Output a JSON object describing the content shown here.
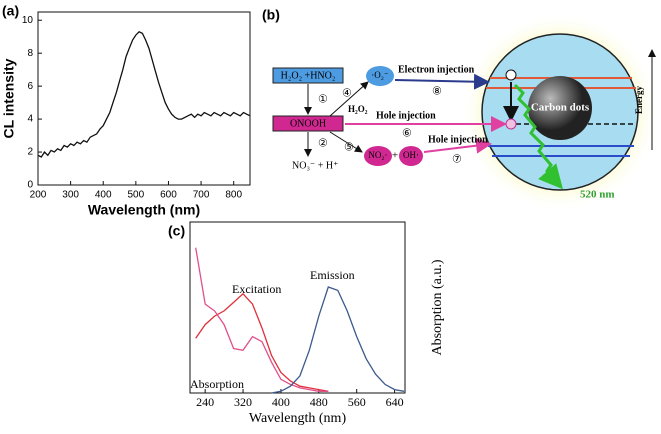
{
  "chart_data": [
    {
      "type": "line",
      "label": "(a)",
      "xlabel": "Wavelength (nm)",
      "ylabel": "CL intensity",
      "color": "#111111",
      "x": [
        200,
        210,
        220,
        230,
        240,
        250,
        260,
        270,
        280,
        290,
        300,
        310,
        320,
        330,
        340,
        350,
        360,
        370,
        380,
        390,
        400,
        410,
        420,
        430,
        440,
        450,
        460,
        470,
        480,
        490,
        500,
        510,
        520,
        530,
        540,
        550,
        560,
        570,
        580,
        590,
        600,
        610,
        620,
        630,
        640,
        650,
        660,
        670,
        680,
        690,
        700,
        710,
        720,
        730,
        740,
        750,
        760,
        770,
        780,
        790,
        800,
        810,
        820,
        830,
        840,
        850
      ],
      "values": [
        1.8,
        1.7,
        2.0,
        1.8,
        2.1,
        2.0,
        2.2,
        2.1,
        2.4,
        2.3,
        2.5,
        2.4,
        2.6,
        2.5,
        2.7,
        2.6,
        2.9,
        3.0,
        3.1,
        3.4,
        3.6,
        4.0,
        4.4,
        5.0,
        5.6,
        6.3,
        7.0,
        7.8,
        8.3,
        8.8,
        9.1,
        9.3,
        9.2,
        8.8,
        8.3,
        7.6,
        6.9,
        6.2,
        5.6,
        5.0,
        4.6,
        4.3,
        4.1,
        4.0,
        4.0,
        4.1,
        4.2,
        4.3,
        4.1,
        4.3,
        4.2,
        4.4,
        4.3,
        4.2,
        4.4,
        4.3,
        4.2,
        4.4,
        4.3,
        4.2,
        4.4,
        4.3,
        4.2,
        4.4,
        4.3,
        4.2
      ],
      "xlim": [
        200,
        850
      ],
      "ylim": [
        0,
        10.5
      ],
      "xticks": [
        200,
        300,
        400,
        500,
        600,
        700,
        800
      ],
      "yticks": [
        0,
        2,
        4,
        6,
        8,
        10
      ]
    },
    {
      "type": "line",
      "label": "(c)",
      "xlabel": "Wavelength (nm)",
      "ylabel": "Absorption (a.u.)",
      "x": [
        220,
        240,
        260,
        280,
        300,
        320,
        340,
        360,
        380,
        400,
        420,
        440,
        460,
        480,
        500,
        520,
        540,
        560,
        580,
        600,
        620,
        640,
        660
      ],
      "series": [
        {
          "name": "Excitation",
          "color": "#e0303a",
          "values": [
            0.32,
            0.4,
            0.45,
            0.48,
            0.53,
            0.58,
            0.52,
            0.38,
            0.22,
            0.12,
            0.07,
            0.04,
            0.03,
            0.02,
            0.01,
            null,
            null,
            null,
            null,
            null,
            null,
            null,
            null
          ]
        },
        {
          "name": "Absorption",
          "color": "#e0508a",
          "values": [
            0.85,
            0.52,
            0.48,
            0.4,
            0.26,
            0.25,
            0.33,
            0.3,
            0.18,
            0.08,
            0.05,
            0.03,
            0.02,
            0.01,
            0.01,
            null,
            null,
            null,
            null,
            null,
            null,
            null,
            null
          ]
        },
        {
          "name": "Emission",
          "color": "#3c5a8c",
          "values": [
            null,
            null,
            null,
            null,
            null,
            null,
            null,
            null,
            0.0,
            0.01,
            0.04,
            0.1,
            0.25,
            0.45,
            0.62,
            0.6,
            0.48,
            0.33,
            0.2,
            0.11,
            0.05,
            0.02,
            0.01
          ]
        }
      ],
      "xlim": [
        208,
        662
      ],
      "ylim": [
        0,
        1
      ],
      "xticks": [
        240,
        320,
        400,
        480,
        560,
        640
      ]
    }
  ],
  "diagram": {
    "label": "(b)",
    "reactant": "H₂O₂ +HNO₂",
    "step1": "①",
    "intermediate": "ONOOH",
    "step2": "②",
    "product": "NO₃⁻ + H⁺",
    "step4": "④",
    "h2o2": "H₂O₂",
    "step5": "⑤",
    "superoxide": "·O₂⁻",
    "electron_injection": "Electron injection",
    "step8": "⑧",
    "hole_injection_1": "Hole injection",
    "step6": "⑥",
    "no2": "NO₂·",
    "plus": "+",
    "oh": "OH·",
    "hole_injection_2": "Hole injection",
    "step7": "⑦",
    "carbon_dots": "Carbon dots",
    "emission": "520 nm",
    "energy": "Energy"
  }
}
